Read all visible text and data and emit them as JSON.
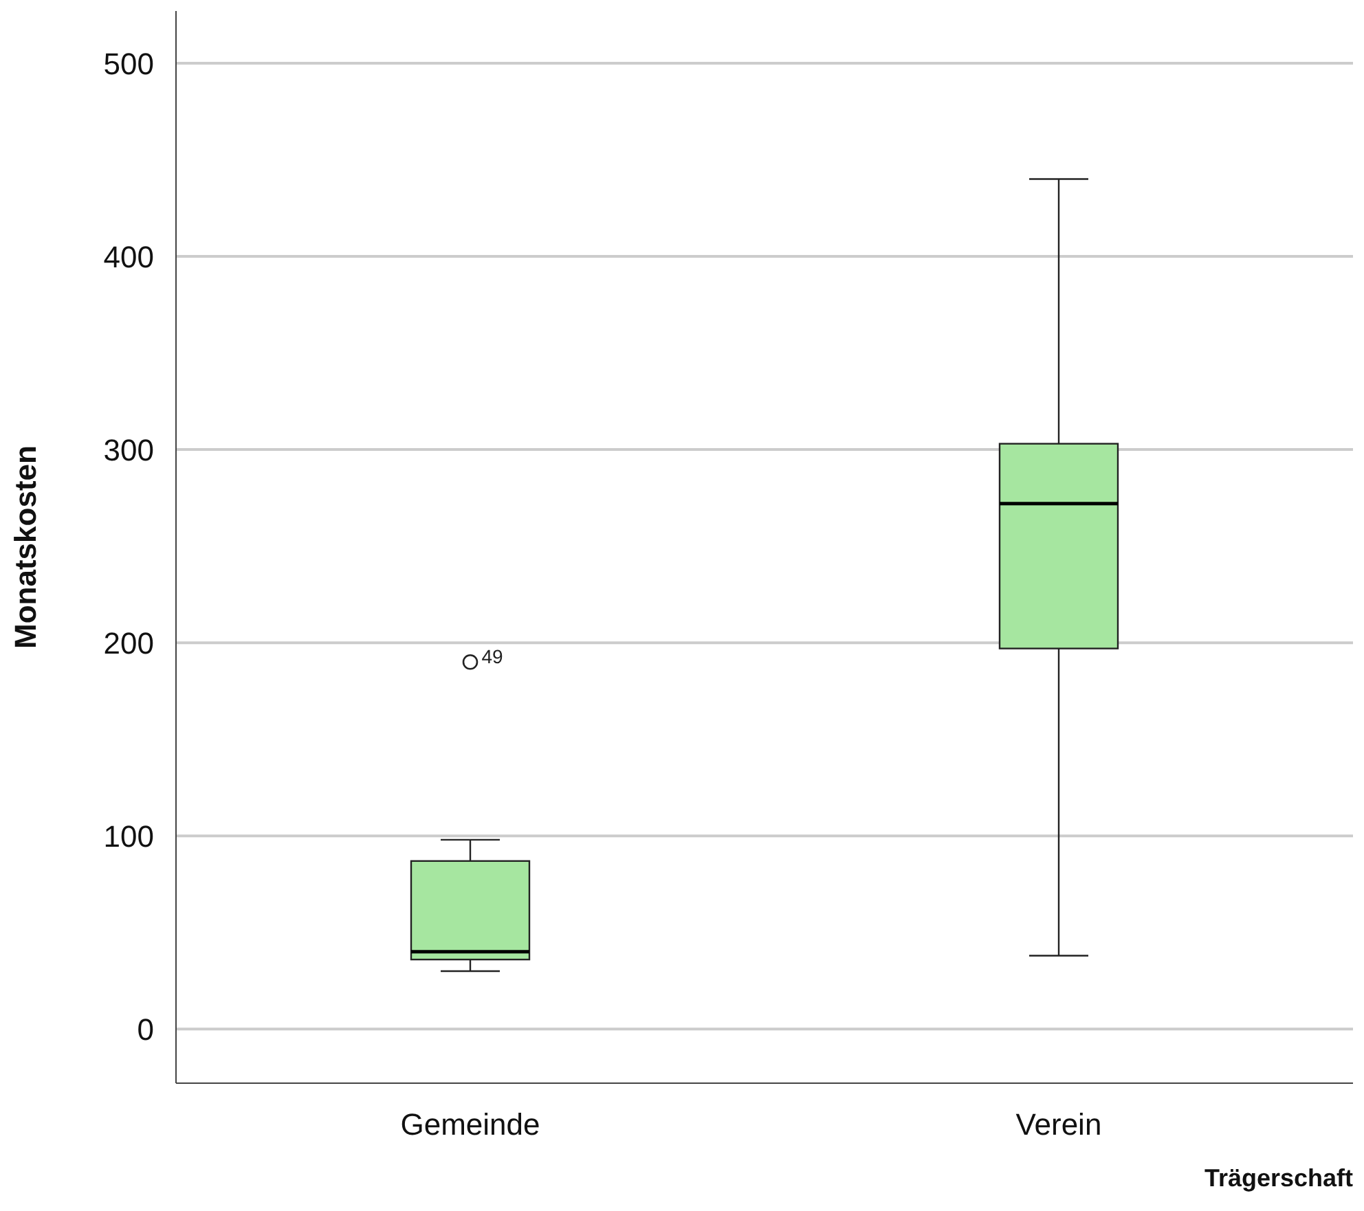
{
  "chart_data": {
    "type": "box",
    "xlabel": "Trägerschaft",
    "ylabel": "Monatskosten",
    "categories": [
      "Gemeinde",
      "Verein"
    ],
    "boxes": [
      {
        "low": 30,
        "q1": 36,
        "median": 40,
        "q3": 87,
        "high": 98,
        "outliers": [
          190
        ]
      },
      {
        "low": 38,
        "q1": 197,
        "median": 272,
        "q3": 303,
        "high": 440
      }
    ],
    "color": "#a6e6a0",
    "ylim": [
      -28,
      527
    ],
    "yticks": [
      0,
      100,
      200,
      300,
      400,
      500
    ],
    "grid": "y",
    "annotations": [
      "49"
    ]
  }
}
